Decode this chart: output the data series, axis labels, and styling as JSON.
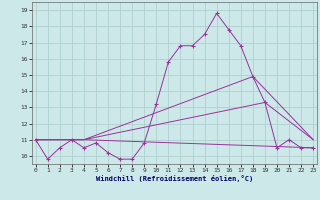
{
  "xlabel": "Windchill (Refroidissement éolien,°C)",
  "bg_color": "#cce8e8",
  "grid_color": "#aacccc",
  "line_color": "#993399",
  "xmin": 0,
  "xmax": 23,
  "ymin": 9.5,
  "ymax": 19.5,
  "yticks": [
    10,
    11,
    12,
    13,
    14,
    15,
    16,
    17,
    18,
    19
  ],
  "xticks": [
    0,
    1,
    2,
    3,
    4,
    5,
    6,
    7,
    8,
    9,
    10,
    11,
    12,
    13,
    14,
    15,
    16,
    17,
    18,
    19,
    20,
    21,
    22,
    23
  ],
  "line1_x": [
    0,
    1,
    2,
    3,
    4,
    5,
    6,
    7,
    8,
    9,
    10,
    11,
    12,
    13,
    14,
    15,
    16,
    17,
    18,
    19,
    20,
    21,
    22,
    23
  ],
  "line1_y": [
    11.0,
    9.8,
    10.5,
    11.0,
    10.5,
    10.8,
    10.2,
    9.8,
    9.8,
    10.8,
    13.2,
    15.8,
    16.8,
    16.8,
    17.5,
    18.8,
    17.8,
    16.8,
    14.9,
    13.3,
    10.5,
    11.0,
    10.5,
    10.5
  ],
  "line2_x": [
    0,
    4,
    18,
    23
  ],
  "line2_y": [
    11.0,
    11.0,
    14.9,
    11.0
  ],
  "line3_x": [
    0,
    4,
    19,
    23
  ],
  "line3_y": [
    11.0,
    11.0,
    13.3,
    11.0
  ],
  "line4_x": [
    0,
    4,
    23
  ],
  "line4_y": [
    11.0,
    11.0,
    10.5
  ]
}
